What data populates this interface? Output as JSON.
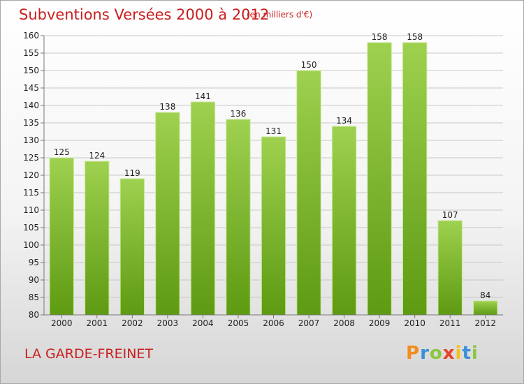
{
  "header": {
    "title": "Subventions Versées 2000 à 2012",
    "unit": "(en milliers d'€)"
  },
  "footer": {
    "commune": "LA GARDE-FREINET",
    "logo_text": "Proxiti",
    "logo_colors": [
      "#f28c1e",
      "#3b8fd6",
      "#8cc63f",
      "#e8432a",
      "#f2c21e",
      "#3b8fd6",
      "#8cc63f"
    ]
  },
  "colors": {
    "bar_top": "#9ed14f",
    "bar_bottom": "#5e9a12",
    "title": "#c8201e"
  },
  "chart_data": {
    "type": "bar",
    "title": "Subventions Versées 2000 à 2012",
    "xlabel": "",
    "ylabel": "",
    "categories": [
      "2000",
      "2001",
      "2002",
      "2003",
      "2004",
      "2005",
      "2006",
      "2007",
      "2008",
      "2009",
      "2010",
      "2011",
      "2012"
    ],
    "values": [
      125,
      124,
      119,
      138,
      141,
      136,
      131,
      150,
      134,
      158,
      158,
      107,
      84
    ],
    "value_labels": [
      "125",
      "124",
      "119",
      "138",
      "141",
      "136",
      "131",
      "150",
      "134",
      "158",
      "158",
      "107",
      "84"
    ],
    "ylim": [
      80,
      160
    ],
    "yticks": [
      80,
      85,
      90,
      95,
      100,
      105,
      110,
      115,
      120,
      125,
      130,
      135,
      140,
      145,
      150,
      155,
      160
    ],
    "grid": true
  }
}
